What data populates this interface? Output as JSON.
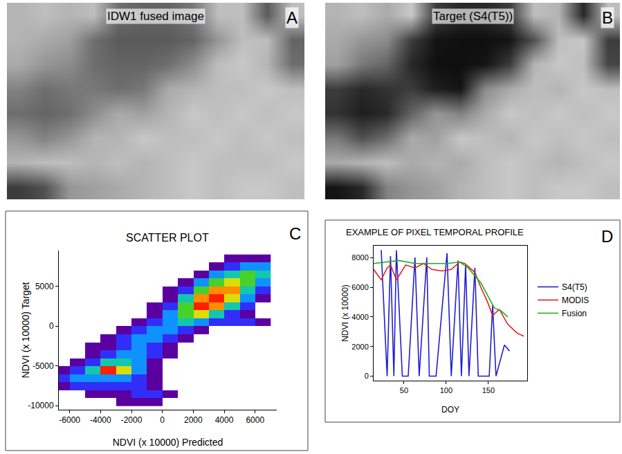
{
  "chart_data": [
    {
      "type": "image",
      "panel_label": "A",
      "title": "IDW1 fused image",
      "tick_labels": false,
      "zlim": [
        0,
        255
      ],
      "cells": [
        [
          180,
          190,
          180,
          190,
          110,
          100,
          100,
          120,
          190,
          190,
          90,
          190
        ],
        [
          180,
          170,
          160,
          110,
          90,
          90,
          90,
          100,
          150,
          190,
          190,
          100
        ],
        [
          170,
          150,
          140,
          110,
          100,
          100,
          110,
          140,
          190,
          200,
          180,
          110
        ],
        [
          130,
          110,
          120,
          120,
          110,
          120,
          170,
          180,
          190,
          190,
          200,
          190
        ],
        [
          110,
          100,
          110,
          140,
          170,
          160,
          180,
          200,
          190,
          200,
          190,
          200
        ],
        [
          150,
          130,
          150,
          180,
          180,
          200,
          190,
          190,
          200,
          190,
          200,
          190
        ],
        [
          180,
          190,
          190,
          180,
          190,
          180,
          190,
          200,
          190,
          190,
          190,
          200
        ],
        [
          60,
          80,
          150,
          160,
          170,
          180,
          190,
          200,
          190,
          200,
          200,
          190
        ]
      ]
    },
    {
      "type": "image",
      "panel_label": "B",
      "title": "Target (S4(T5))",
      "tick_labels": false,
      "zlim": [
        0,
        255
      ],
      "cells": [
        [
          180,
          190,
          170,
          200,
          60,
          40,
          40,
          60,
          190,
          180,
          40,
          190
        ],
        [
          170,
          150,
          140,
          60,
          20,
          15,
          15,
          20,
          80,
          190,
          200,
          60
        ],
        [
          160,
          120,
          100,
          40,
          15,
          15,
          20,
          60,
          180,
          200,
          190,
          70
        ],
        [
          60,
          40,
          50,
          60,
          30,
          20,
          140,
          170,
          190,
          180,
          200,
          190
        ],
        [
          50,
          30,
          40,
          100,
          150,
          130,
          170,
          200,
          190,
          200,
          190,
          200
        ],
        [
          120,
          80,
          110,
          170,
          160,
          200,
          190,
          180,
          200,
          190,
          200,
          190
        ],
        [
          170,
          180,
          190,
          170,
          180,
          170,
          190,
          200,
          190,
          180,
          190,
          200
        ],
        [
          20,
          40,
          130,
          150,
          160,
          180,
          190,
          200,
          190,
          200,
          200,
          190
        ]
      ]
    },
    {
      "type": "heatmap",
      "panel_label": "C",
      "title": "SCATTER PLOT",
      "x_label": "NDVI (x 10000) Predicted",
      "y_label": "NDVI (x 10000) Target",
      "x": [
        -6500,
        -5500,
        -4500,
        -3500,
        -2500,
        -1500,
        -500,
        500,
        1500,
        2500,
        3500,
        4500,
        5500,
        6500
      ],
      "y": [
        -9500,
        -8500,
        -7500,
        -6500,
        -5500,
        -4500,
        -3500,
        -2500,
        -1500,
        -500,
        500,
        1500,
        2500,
        3500,
        4500,
        5500,
        6500,
        7500,
        8500
      ],
      "density": [
        [
          null,
          null,
          null,
          null,
          1,
          1,
          1,
          null,
          null,
          null,
          null,
          null,
          null,
          null
        ],
        [
          null,
          null,
          1,
          1,
          1,
          2,
          2,
          1,
          null,
          null,
          null,
          null,
          null,
          null
        ],
        [
          1,
          2,
          2,
          2,
          2,
          2,
          1,
          null,
          null,
          null,
          null,
          null,
          null,
          null
        ],
        [
          2,
          3,
          3,
          3,
          3,
          2,
          1,
          null,
          null,
          null,
          null,
          null,
          null,
          null
        ],
        [
          1,
          2,
          4,
          8,
          6,
          3,
          1,
          null,
          null,
          null,
          null,
          null,
          null,
          null
        ],
        [
          null,
          1,
          2,
          4,
          4,
          3,
          1,
          null,
          null,
          null,
          null,
          null,
          null,
          null
        ],
        [
          null,
          null,
          1,
          2,
          3,
          3,
          2,
          1,
          null,
          null,
          null,
          null,
          null,
          null
        ],
        [
          null,
          null,
          1,
          1,
          2,
          3,
          2,
          1,
          null,
          null,
          null,
          null,
          null,
          null
        ],
        [
          null,
          null,
          null,
          1,
          2,
          3,
          3,
          2,
          1,
          null,
          null,
          null,
          null,
          null
        ],
        [
          null,
          null,
          null,
          null,
          1,
          2,
          3,
          3,
          2,
          1,
          null,
          null,
          null,
          null
        ],
        [
          null,
          null,
          null,
          null,
          null,
          1,
          2,
          3,
          4,
          3,
          2,
          2,
          2,
          1
        ],
        [
          null,
          null,
          null,
          null,
          null,
          null,
          1,
          3,
          5,
          6,
          4,
          2,
          1,
          null
        ],
        [
          null,
          null,
          null,
          null,
          null,
          null,
          1,
          2,
          5,
          8,
          7,
          4,
          2,
          null
        ],
        [
          null,
          null,
          null,
          null,
          null,
          null,
          null,
          1,
          4,
          7,
          8,
          6,
          3,
          1
        ],
        [
          null,
          null,
          null,
          null,
          null,
          null,
          null,
          1,
          2,
          5,
          7,
          7,
          4,
          2
        ],
        [
          null,
          null,
          null,
          null,
          null,
          null,
          null,
          null,
          1,
          3,
          5,
          6,
          5,
          3
        ],
        [
          null,
          null,
          null,
          null,
          null,
          null,
          null,
          null,
          null,
          1,
          3,
          4,
          5,
          4
        ],
        [
          null,
          null,
          null,
          null,
          null,
          null,
          null,
          null,
          null,
          null,
          1,
          2,
          3,
          3
        ],
        [
          null,
          null,
          null,
          null,
          null,
          null,
          null,
          null,
          null,
          null,
          null,
          1,
          1,
          1
        ]
      ],
      "xlim": [
        -6700,
        7400
      ],
      "ylim": [
        -10500,
        9500
      ],
      "xticks": [
        -6000,
        -4000,
        -2000,
        0,
        2000,
        4000,
        6000
      ],
      "yticks": [
        -10000,
        -5000,
        0,
        5000
      ],
      "grid": false
    },
    {
      "type": "line",
      "panel_label": "D",
      "title": "EXAMPLE OF PIXEL TEMPORAL PROFILE",
      "x_label": "DOY",
      "y_label": "NDVI (x 10000)",
      "series": [
        {
          "name": "S4(T5)",
          "color": "#1f1fcf",
          "x": [
            23,
            30,
            34,
            38,
            41,
            48,
            55,
            63,
            68,
            77,
            80,
            88,
            101,
            106,
            114,
            118,
            123,
            127,
            134,
            138,
            151,
            155,
            159,
            169,
            175
          ],
          "values": [
            8500,
            0,
            8100,
            0,
            8500,
            0,
            0,
            8000,
            0,
            8000,
            0,
            0,
            8300,
            0,
            7800,
            0,
            7500,
            0,
            7300,
            0,
            0,
            4800,
            0,
            2100,
            1700
          ]
        },
        {
          "name": "MODIS",
          "color": "#e02020",
          "x": [
            14,
            23,
            30,
            34,
            41,
            52,
            63,
            73,
            83,
            95,
            106,
            116,
            122,
            134,
            141,
            149,
            155,
            163,
            173,
            184,
            192
          ],
          "values": [
            7200,
            6500,
            7300,
            7500,
            6500,
            7500,
            7300,
            7600,
            7200,
            7100,
            7200,
            7700,
            7600,
            7000,
            6000,
            5000,
            4100,
            4500,
            3500,
            2900,
            2700
          ]
        },
        {
          "name": "Fusion",
          "color": "#20b020",
          "x": [
            14,
            28,
            44,
            63,
            102,
            116,
            126,
            141,
            151,
            157,
            165,
            173
          ],
          "values": [
            7600,
            7700,
            7800,
            7600,
            7600,
            7700,
            7300,
            6300,
            5200,
            4600,
            4400,
            4000
          ]
        }
      ],
      "xlim": [
        14,
        196
      ],
      "ylim": [
        -300,
        8800
      ],
      "xticks": [
        50,
        100,
        150
      ],
      "yticks": [
        0,
        2000,
        4000,
        6000,
        8000
      ],
      "legend": "right",
      "grid": false
    }
  ]
}
